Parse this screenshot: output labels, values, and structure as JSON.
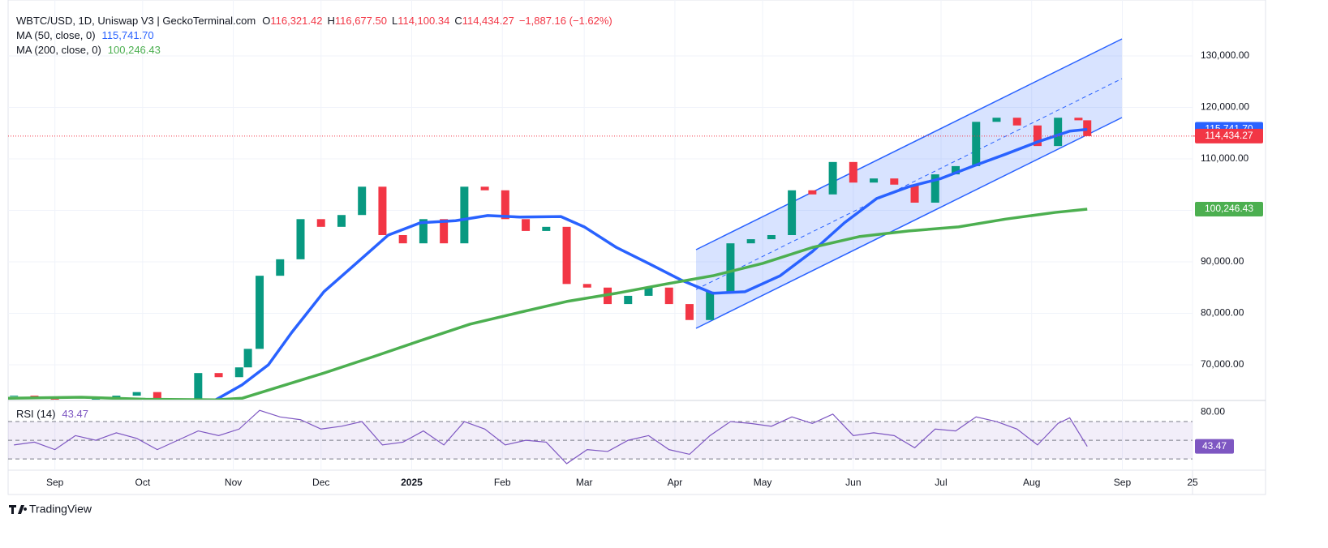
{
  "header": {
    "symbol": "WBTC/USD, 1D, Uniswap V3 | GeckoTerminal.com",
    "ohlc": [
      {
        "label": "O",
        "value": "116,321.42"
      },
      {
        "label": "H",
        "value": "116,677.50"
      },
      {
        "label": "L",
        "value": "114,100.34"
      },
      {
        "label": "C",
        "value": "114,434.27"
      }
    ],
    "change": "−1,887.16 (−1.62%)"
  },
  "footer": {
    "brand": "TradingView"
  },
  "chart_data": [
    {
      "type": "candlestick",
      "xlim": [
        -16,
        389
      ],
      "xticks": [
        {
          "value": 0,
          "label": "Sep"
        },
        {
          "value": 30,
          "label": "Oct"
        },
        {
          "value": 61,
          "label": "Nov"
        },
        {
          "value": 91,
          "label": "Dec"
        },
        {
          "value": 122,
          "label": "2025"
        },
        {
          "value": 153,
          "label": "Feb"
        },
        {
          "value": 181,
          "label": "Mar"
        },
        {
          "value": 212,
          "label": "Apr"
        },
        {
          "value": 242,
          "label": "May"
        },
        {
          "value": 273,
          "label": "Jun"
        },
        {
          "value": 303,
          "label": "Jul"
        },
        {
          "value": 334,
          "label": "Aug"
        },
        {
          "value": 365,
          "label": "Sep"
        },
        {
          "value": 389,
          "label": "25"
        }
      ],
      "ylim": [
        63230,
        140870
      ],
      "yticks": [
        {
          "value": 70000,
          "label": "70,000.00"
        },
        {
          "value": 80000,
          "label": "80,000.00"
        },
        {
          "value": 90000,
          "label": "90,000.00"
        },
        {
          "value": 100000,
          "label": "100,000.00"
        },
        {
          "value": 110000,
          "label": "110,000.00"
        },
        {
          "value": 120000,
          "label": "120,000.00"
        },
        {
          "value": 130000,
          "label": "130,000.00"
        }
      ],
      "grid": true,
      "up_color": "#089981",
      "down_color": "#f23645",
      "x": [
        -14,
        -7,
        0,
        7,
        14,
        21,
        28,
        35,
        42,
        49,
        56,
        63,
        66,
        70,
        77,
        84,
        91,
        98,
        105,
        112,
        119,
        126,
        133,
        140,
        147,
        154,
        161,
        168,
        175,
        182,
        189,
        196,
        203,
        210,
        217,
        224,
        231,
        238,
        245,
        252,
        259,
        266,
        273,
        280,
        287,
        294,
        301,
        308,
        315,
        322,
        329,
        336,
        343,
        350,
        353
      ],
      "close": [
        64000,
        63800,
        63000,
        62000,
        63500,
        64000,
        64700,
        62500,
        63000,
        68400,
        67600,
        69500,
        73100,
        87300,
        90500,
        98300,
        96800,
        99100,
        104600,
        95200,
        93600,
        98300,
        93600,
        104600,
        103900,
        98300,
        96000,
        96800,
        85700,
        85000,
        81800,
        83400,
        85000,
        81800,
        78700,
        84200,
        93600,
        94400,
        95200,
        103900,
        103100,
        109400,
        105400,
        106200,
        105000,
        101500,
        107000,
        108600,
        117200,
        118000,
        116500,
        112500,
        118000,
        117500,
        114434.27
      ],
      "series": [
        {
          "name": "MA (50, close, 0)",
          "value_label": "115,741.70",
          "color": "#2962ff",
          "x": [
            55,
            64,
            73,
            81,
            92,
            103,
            114,
            125,
            137,
            148,
            159,
            173,
            181,
            192,
            203,
            214,
            225,
            236,
            248,
            259,
            270,
            281,
            292,
            303,
            314,
            325,
            336,
            347,
            353
          ],
          "values": [
            63200,
            66100,
            70000,
            76300,
            84200,
            89700,
            95200,
            97600,
            98000,
            99000,
            98700,
            98800,
            96800,
            92800,
            89700,
            86500,
            83900,
            84200,
            87300,
            92000,
            97600,
            102300,
            104600,
            106200,
            108600,
            110900,
            113300,
            115400,
            115741.7
          ]
        },
        {
          "name": "MA (200, close, 0)",
          "value_label": "100,246.43",
          "color": "#4caf50",
          "x": [
            -16,
            9,
            31,
            55,
            64,
            76,
            92,
            109,
            125,
            142,
            159,
            175,
            192,
            209,
            225,
            242,
            259,
            275,
            292,
            309,
            325,
            342,
            353
          ],
          "values": [
            63500,
            63700,
            63300,
            63200,
            63500,
            65600,
            68400,
            71600,
            74700,
            77900,
            80200,
            82300,
            83900,
            85700,
            87300,
            89700,
            92800,
            94900,
            96000,
            96800,
            98300,
            99600,
            100246.43
          ]
        }
      ]
    },
    {
      "type": "line",
      "name": "RSI (14)",
      "value_label": "43.47",
      "color": "#7e57c2",
      "xlim": [
        -16,
        389
      ],
      "ylim": [
        18,
        90
      ],
      "yticks": [
        {
          "value": 80,
          "label": "80.00"
        }
      ],
      "bands": [
        30,
        50,
        70
      ],
      "x": [
        -14,
        -7,
        0,
        7,
        14,
        21,
        28,
        35,
        42,
        49,
        56,
        63,
        70,
        77,
        84,
        91,
        98,
        105,
        112,
        119,
        126,
        133,
        140,
        147,
        154,
        161,
        168,
        175,
        182,
        189,
        196,
        203,
        210,
        217,
        224,
        231,
        238,
        245,
        252,
        259,
        266,
        273,
        280,
        287,
        294,
        301,
        308,
        315,
        322,
        329,
        336,
        343,
        347,
        353
      ],
      "values": [
        45,
        48,
        40,
        55,
        50,
        58,
        52,
        40,
        50,
        60,
        55,
        62,
        82,
        75,
        72,
        62,
        65,
        70,
        45,
        48,
        60,
        45,
        70,
        62,
        45,
        50,
        48,
        25,
        40,
        38,
        50,
        55,
        40,
        35,
        55,
        70,
        68,
        65,
        75,
        68,
        78,
        55,
        58,
        55,
        42,
        62,
        60,
        75,
        70,
        62,
        45,
        68,
        74,
        43.47
      ]
    }
  ]
}
